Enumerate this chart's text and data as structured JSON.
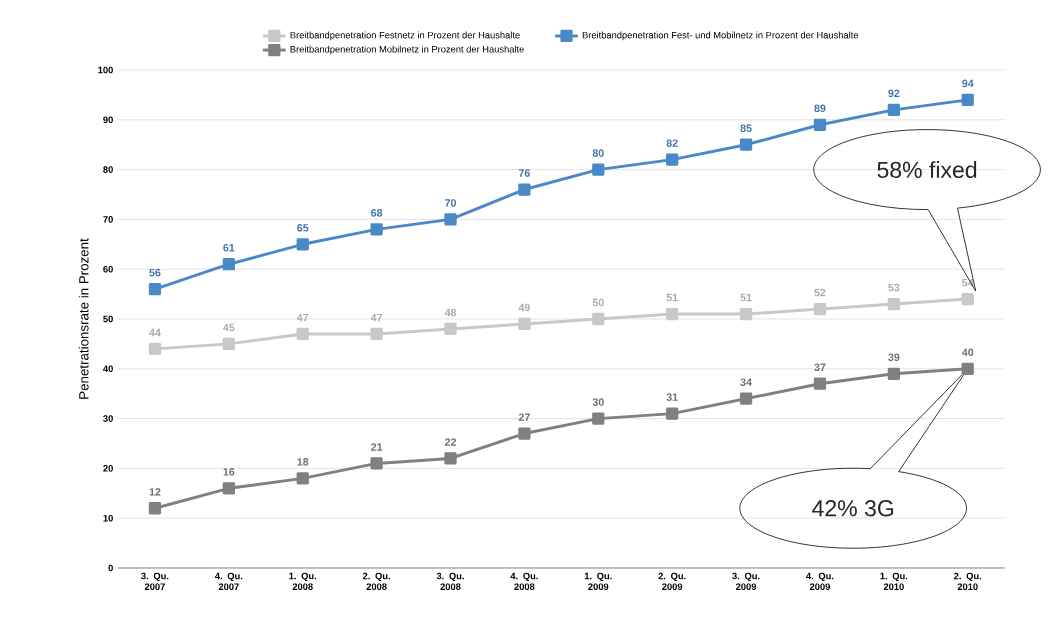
{
  "chart_data": {
    "type": "line",
    "ylabel": "Penetrationsrate in Prozent",
    "categories": [
      "3. Qu. 2007",
      "4. Qu. 2007",
      "1. Qu. 2008",
      "2. Qu. 2008",
      "3. Qu. 2008",
      "4. Qu. 2008",
      "1. Qu. 2009",
      "2. Qu. 2009",
      "3. Qu. 2009",
      "4. Qu. 2009",
      "1. Qu. 2010",
      "2. Qu. 2010"
    ],
    "series": [
      {
        "name": "Breitbandpenetration Festnetz in Prozent der Haushalte",
        "color": "#c8c8c8",
        "values": [
          44,
          45,
          47,
          47,
          48,
          49,
          50,
          51,
          51,
          52,
          53,
          54
        ]
      },
      {
        "name": "Breitbandpenetration Fest- und Mobilnetz in Prozent der Haushalte",
        "color": "#4a88c7",
        "values": [
          56,
          61,
          65,
          68,
          70,
          76,
          80,
          82,
          85,
          89,
          92,
          94
        ]
      },
      {
        "name": "Breitbandpenetration Mobilnetz in Prozent der Haushalte",
        "color": "#808080",
        "values": [
          12,
          16,
          18,
          21,
          22,
          27,
          30,
          31,
          34,
          37,
          39,
          40
        ]
      }
    ],
    "ylim": [
      0,
      100
    ],
    "yticks": [
      0,
      10,
      20,
      30,
      40,
      50,
      60,
      70,
      80,
      90,
      100
    ],
    "grid": "y",
    "legend": "top",
    "marker": "square",
    "line_style": "solid",
    "data_labels": true,
    "annotations": [
      "58% fixed",
      "42% 3G"
    ]
  }
}
